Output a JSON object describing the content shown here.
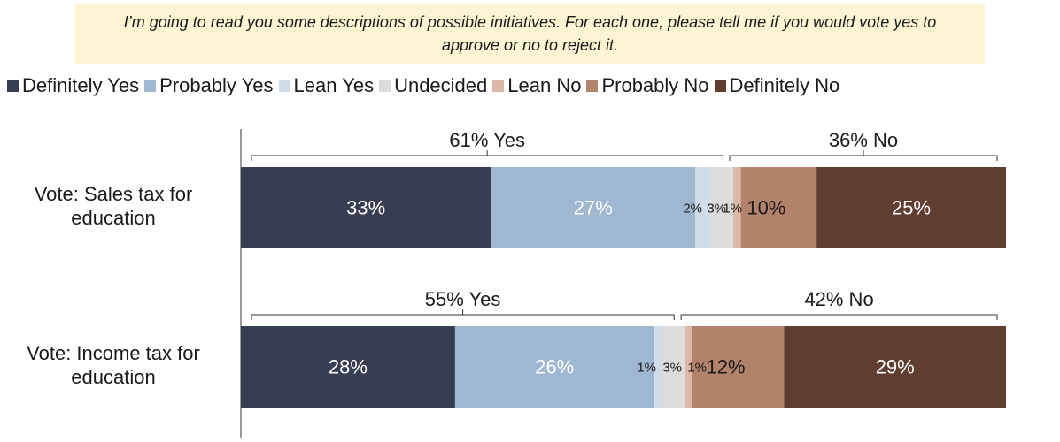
{
  "question": "I’m going to read you some descriptions of possible initiatives. For each one, please tell me if you would vote yes to approve or no to reject it.",
  "colors": {
    "Definitely Yes": "#373d52",
    "Probably Yes": "#9fb7d0",
    "Lean Yes": "#cfdde9",
    "Undecided": "#dcdcdc",
    "Lean No": "#dbb8a7",
    "Probably No": "#b3826b",
    "Definitely No": "#5f3e30"
  },
  "chart_data": {
    "type": "bar",
    "stacked": true,
    "orientation": "horizontal",
    "categories": [
      "Sales tax for education",
      "Income tax for education"
    ],
    "category_labels": [
      [
        "Vote: Sales tax for",
        "education"
      ],
      [
        "Vote: Income tax for",
        "education"
      ]
    ],
    "series": [
      {
        "name": "Definitely Yes",
        "values": [
          33,
          28
        ],
        "labels": [
          "33%",
          "28%"
        ]
      },
      {
        "name": "Probably Yes",
        "values": [
          27,
          26
        ],
        "labels": [
          "27%",
          "26%"
        ]
      },
      {
        "name": "Lean Yes",
        "values": [
          2,
          1
        ],
        "labels": [
          "2%",
          "1%"
        ]
      },
      {
        "name": "Undecided",
        "values": [
          3,
          3
        ],
        "labels": [
          "3%",
          "3%"
        ]
      },
      {
        "name": "Lean No",
        "values": [
          1,
          1
        ],
        "labels": [
          "1%",
          "1%"
        ]
      },
      {
        "name": "Probably No",
        "values": [
          10,
          12
        ],
        "labels": [
          "10%",
          "12%"
        ]
      },
      {
        "name": "Definitely No",
        "values": [
          25,
          29
        ],
        "labels": [
          "25%",
          "29%"
        ]
      }
    ],
    "brackets": [
      {
        "yes": "61% Yes",
        "no": "36% No"
      },
      {
        "yes": "55% Yes",
        "no": "42% No"
      }
    ],
    "legend_position": "top",
    "grid": false
  }
}
